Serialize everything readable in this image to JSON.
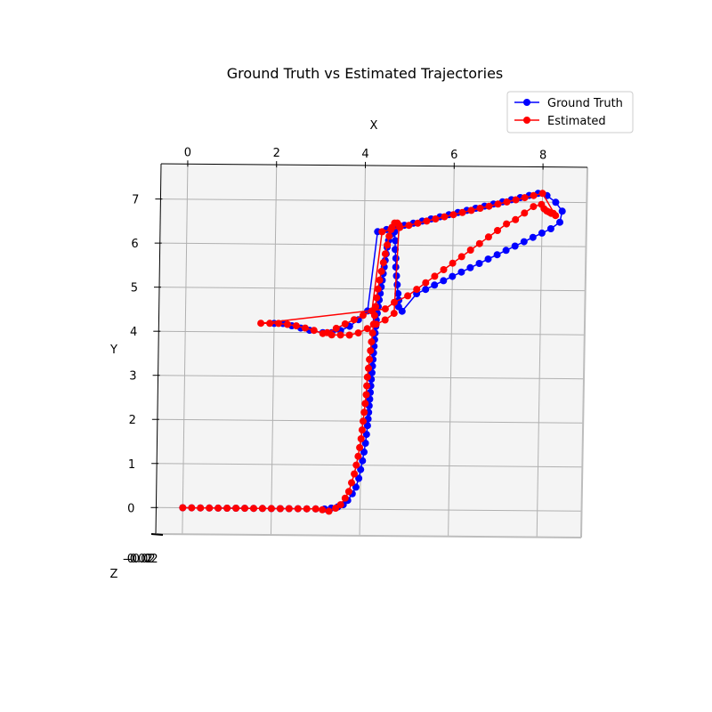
{
  "chart_data": {
    "type": "line",
    "projection": "3d",
    "title": "Ground Truth vs Estimated Trajectories",
    "xlabel": "X",
    "ylabel": "Y",
    "zlabel": "Z",
    "xlim": [
      -0.6,
      9.0
    ],
    "ylim": [
      -0.6,
      7.8
    ],
    "x_ticks": [
      0,
      2,
      4,
      6,
      8
    ],
    "y_ticks": [
      0,
      1,
      2,
      3,
      4,
      5,
      6,
      7
    ],
    "z_tick_text": "-0.02",
    "grid": true,
    "legend_position": "top-right",
    "series": [
      {
        "name": "Ground Truth",
        "color": "#0000ff",
        "x": [
          0.0,
          0.2,
          0.4,
          0.6,
          0.8,
          1.0,
          1.2,
          1.4,
          1.6,
          1.8,
          2.0,
          2.2,
          2.4,
          2.6,
          2.8,
          3.0,
          3.2,
          3.35,
          3.5,
          3.62,
          3.72,
          3.82,
          3.9,
          3.96,
          4.0,
          4.04,
          4.07,
          4.1,
          4.12,
          4.14,
          4.15,
          4.16,
          4.17,
          4.18,
          4.19,
          4.2,
          4.21,
          4.22,
          4.23,
          4.24,
          4.25,
          4.26,
          4.27,
          4.28,
          4.29,
          4.3,
          4.32,
          4.34,
          4.36,
          4.38,
          4.4,
          4.42,
          4.44,
          4.46,
          4.48,
          4.5,
          4.52,
          4.55,
          4.62,
          4.68,
          4.7,
          4.7,
          4.72,
          4.72,
          4.74,
          4.76,
          4.78,
          4.8,
          4.8,
          4.88,
          5.2,
          5.4,
          5.6,
          5.8,
          6.0,
          6.2,
          6.4,
          6.6,
          6.8,
          7.0,
          7.2,
          7.4,
          7.6,
          7.8,
          8.0,
          8.2,
          8.4,
          8.45,
          8.3,
          8.1,
          7.9,
          7.7,
          7.5,
          7.3,
          7.1,
          6.9,
          6.7,
          6.5,
          6.3,
          6.1,
          5.9,
          5.7,
          5.5,
          5.3,
          5.1,
          4.9,
          4.7,
          4.5,
          4.3,
          4.1,
          3.9,
          3.7,
          3.5,
          3.3,
          3.1,
          2.8,
          2.6,
          2.4,
          2.2,
          2.0
        ],
        "y": [
          0.0,
          0.0,
          0.0,
          0.0,
          0.0,
          0.0,
          0.0,
          0.0,
          0.0,
          0.0,
          0.0,
          0.0,
          0.0,
          0.0,
          0.0,
          0.0,
          0.0,
          0.02,
          0.05,
          0.1,
          0.2,
          0.35,
          0.5,
          0.7,
          0.9,
          1.1,
          1.3,
          1.5,
          1.7,
          1.9,
          2.05,
          2.2,
          2.35,
          2.5,
          2.65,
          2.8,
          2.95,
          3.1,
          3.25,
          3.4,
          3.55,
          3.7,
          3.85,
          4.0,
          4.15,
          4.3,
          4.45,
          4.6,
          4.75,
          4.9,
          5.05,
          5.2,
          5.35,
          5.5,
          5.65,
          5.8,
          5.95,
          6.1,
          6.25,
          6.3,
          6.1,
          5.9,
          5.7,
          5.5,
          5.3,
          5.1,
          4.9,
          4.75,
          4.6,
          4.5,
          4.9,
          5.0,
          5.1,
          5.2,
          5.3,
          5.4,
          5.5,
          5.6,
          5.7,
          5.8,
          5.9,
          6.0,
          6.1,
          6.2,
          6.3,
          6.4,
          6.55,
          6.8,
          7.0,
          7.15,
          7.2,
          7.15,
          7.1,
          7.05,
          7.0,
          6.95,
          6.9,
          6.85,
          6.8,
          6.75,
          6.7,
          6.65,
          6.6,
          6.55,
          6.5,
          6.45,
          6.4,
          6.35,
          6.3,
          4.5,
          4.3,
          4.15,
          4.05,
          4.0,
          4.0,
          4.05,
          4.1,
          4.15,
          4.2,
          4.2
        ]
      },
      {
        "name": "Estimated",
        "color": "#ff0000",
        "x": [
          0.0,
          0.2,
          0.4,
          0.6,
          0.8,
          1.0,
          1.2,
          1.4,
          1.6,
          1.8,
          2.0,
          2.2,
          2.4,
          2.6,
          2.8,
          3.0,
          3.15,
          3.3,
          3.45,
          3.56,
          3.66,
          3.74,
          3.8,
          3.86,
          3.9,
          3.94,
          3.97,
          4.0,
          4.02,
          4.04,
          4.06,
          4.08,
          4.1,
          4.11,
          4.12,
          4.14,
          4.16,
          4.18,
          4.2,
          4.22,
          4.24,
          4.26,
          4.28,
          4.3,
          4.33,
          4.36,
          4.4,
          4.44,
          4.48,
          4.52,
          4.56,
          4.62,
          4.68,
          4.74,
          4.78,
          4.7,
          4.5,
          4.3,
          4.1,
          3.9,
          3.7,
          3.5,
          3.3,
          3.1,
          2.9,
          2.7,
          2.5,
          2.3,
          2.1,
          1.9,
          1.7,
          4.5,
          4.7,
          5.0,
          5.2,
          5.4,
          5.6,
          5.8,
          6.0,
          6.2,
          6.4,
          6.6,
          6.8,
          7.0,
          7.2,
          7.4,
          7.6,
          7.8,
          7.98,
          8.04,
          8.1,
          8.15,
          8.2,
          8.25,
          8.3,
          8.0,
          7.8,
          7.6,
          7.4,
          7.2,
          7.0,
          6.8,
          6.6,
          6.4,
          6.2,
          6.0,
          5.8,
          5.6,
          5.4,
          5.2,
          5.0,
          4.8,
          4.6,
          4.4,
          4.2,
          4.0,
          3.8,
          3.6,
          3.4,
          3.2
        ],
        "y": [
          0.0,
          0.0,
          0.0,
          0.0,
          0.0,
          0.0,
          0.0,
          0.0,
          0.0,
          0.0,
          0.0,
          0.0,
          0.0,
          0.0,
          0.0,
          0.0,
          -0.02,
          -0.05,
          0.02,
          0.1,
          0.25,
          0.4,
          0.6,
          0.8,
          1.0,
          1.2,
          1.4,
          1.6,
          1.8,
          2.0,
          2.2,
          2.4,
          2.6,
          2.8,
          3.0,
          3.2,
          3.4,
          3.6,
          3.8,
          4.0,
          4.2,
          4.4,
          4.6,
          4.8,
          5.0,
          5.2,
          5.4,
          5.6,
          5.8,
          6.0,
          6.2,
          6.4,
          6.5,
          6.5,
          6.45,
          4.45,
          4.3,
          4.2,
          4.1,
          4.0,
          3.95,
          3.95,
          3.95,
          3.98,
          4.05,
          4.1,
          4.15,
          4.18,
          4.2,
          4.2,
          4.2,
          4.55,
          4.7,
          4.85,
          5.0,
          5.15,
          5.3,
          5.45,
          5.6,
          5.75,
          5.9,
          6.05,
          6.2,
          6.35,
          6.5,
          6.6,
          6.75,
          6.9,
          6.95,
          6.85,
          6.8,
          6.78,
          6.75,
          6.75,
          6.7,
          7.2,
          7.15,
          7.1,
          7.05,
          7.0,
          6.95,
          6.9,
          6.85,
          6.8,
          6.75,
          6.7,
          6.65,
          6.6,
          6.55,
          6.5,
          6.45,
          6.4,
          6.35,
          6.3,
          4.5,
          4.4,
          4.3,
          4.2,
          4.1,
          4.0
        ]
      }
    ]
  }
}
